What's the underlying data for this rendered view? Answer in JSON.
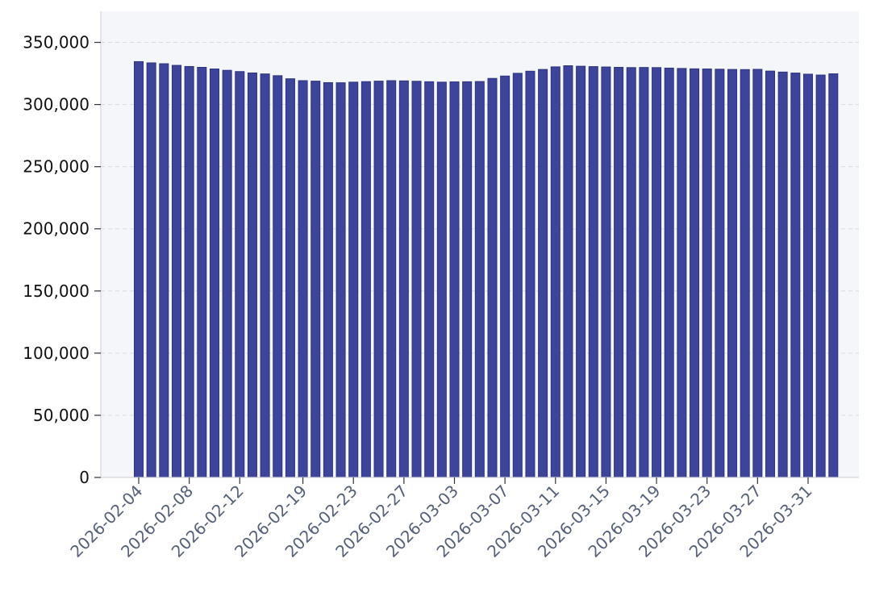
{
  "chart_data": {
    "type": "bar",
    "title": "",
    "xlabel": "",
    "ylabel": "",
    "ylim": [
      0,
      375000
    ],
    "y_ticks": [
      0,
      50000,
      100000,
      150000,
      200000,
      250000,
      300000,
      350000
    ],
    "y_tick_labels": [
      "0",
      "50,000",
      "100,000",
      "150,000",
      "200,000",
      "250,000",
      "300,000",
      "350,000"
    ],
    "grid": true,
    "legend": "none",
    "x_tick_labels": [
      "2026-02-04",
      "2026-02-08",
      "2026-02-12",
      "2026-02-19",
      "2026-02-23",
      "2026-02-27",
      "2026-03-03",
      "2026-03-07",
      "2026-03-11",
      "2026-03-15",
      "2026-03-19",
      "2026-03-23",
      "2026-03-27",
      "2026-03-31"
    ],
    "categories": [
      "2026-02-04",
      "2026-02-05",
      "2026-02-06",
      "2026-02-07",
      "2026-02-08",
      "2026-02-09",
      "2026-02-10",
      "2026-02-11",
      "2026-02-12",
      "2026-02-13",
      "2026-02-16",
      "2026-02-17",
      "2026-02-18",
      "2026-02-19",
      "2026-02-20",
      "2026-02-21",
      "2026-02-22",
      "2026-02-23",
      "2026-02-24",
      "2026-02-25",
      "2026-02-26",
      "2026-02-27",
      "2026-02-28",
      "2026-03-01",
      "2026-03-02",
      "2026-03-03",
      "2026-03-04",
      "2026-03-05",
      "2026-03-06",
      "2026-03-07",
      "2026-03-08",
      "2026-03-09",
      "2026-03-10",
      "2026-03-11",
      "2026-03-12",
      "2026-03-13",
      "2026-03-14",
      "2026-03-15",
      "2026-03-16",
      "2026-03-17",
      "2026-03-18",
      "2026-03-19",
      "2026-03-20",
      "2026-03-21",
      "2026-03-22",
      "2026-03-23",
      "2026-03-24",
      "2026-03-25",
      "2026-03-26",
      "2026-03-27",
      "2026-03-28",
      "2026-03-29",
      "2026-03-30",
      "2026-03-31",
      "2026-04-01",
      "2026-04-02"
    ],
    "values": [
      334500,
      333500,
      332800,
      331500,
      330600,
      329900,
      328600,
      327500,
      326500,
      325400,
      324600,
      323200,
      320700,
      319200,
      318800,
      317600,
      317500,
      318000,
      318400,
      318800,
      319200,
      319000,
      318700,
      318300,
      318000,
      318200,
      318300,
      318500,
      321000,
      322900,
      325100,
      326800,
      328200,
      330300,
      331200,
      330800,
      330500,
      330200,
      329900,
      329700,
      329800,
      329700,
      329300,
      329000,
      328700,
      328600,
      328400,
      328200,
      328100,
      328300,
      326900,
      326100,
      325300,
      324400,
      323700,
      324700
    ],
    "colors": {
      "bar_fill": "#3d4499",
      "bar_stroke": "#2c3280",
      "plot_background": "#f4f6f9",
      "grid": "#d8dbe1",
      "axis": "#d2d5da",
      "y_tick_text": "#111111",
      "x_tick_text": "#56607a"
    }
  }
}
